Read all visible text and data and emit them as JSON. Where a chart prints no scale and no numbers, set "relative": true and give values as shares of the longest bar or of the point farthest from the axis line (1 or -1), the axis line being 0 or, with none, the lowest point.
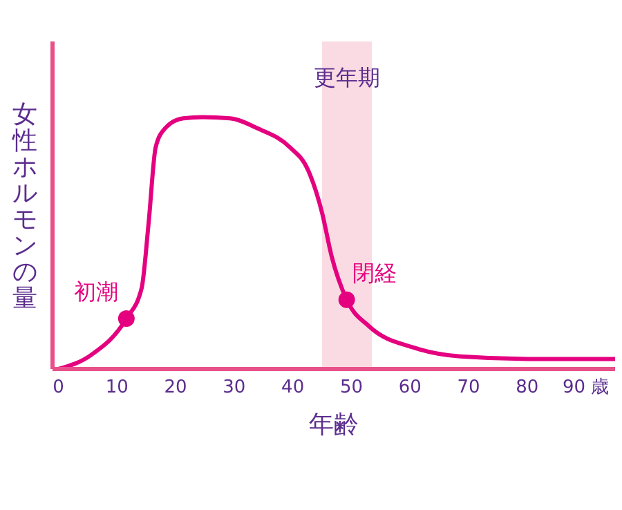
{
  "chart_data": {
    "type": "line",
    "xlabel": "年齢",
    "ylabel": "女性ホルモンの量",
    "relative": true,
    "color": "#e4007f",
    "x": [
      0,
      5.6,
      11.6,
      14.2,
      15.4,
      16.6,
      18.2,
      21.3,
      24.6,
      29.3,
      34,
      39.5,
      42.6,
      45,
      46.6,
      49.2,
      53,
      60.8,
      68.6,
      80.4,
      95
    ],
    "values": [
      0,
      0.056,
      0.2,
      0.32,
      0.58,
      0.88,
      0.955,
      0.995,
      1,
      0.995,
      0.955,
      0.88,
      0.79,
      0.62,
      0.45,
      0.275,
      0.17,
      0.084,
      0.05,
      0.04,
      0.04
    ],
    "xlim": [
      -1,
      95
    ],
    "xticks": [
      0,
      10,
      20,
      30,
      40,
      50,
      60,
      70,
      80,
      {
        "value": 90,
        "label": "90 歳"
      }
    ],
    "bands": [
      {
        "axis": "x",
        "from": 45,
        "to": 53.5,
        "label": "更年期",
        "color": "#fadbe3"
      }
    ],
    "annotations": [
      {
        "text": "初潮",
        "x": 11.6,
        "y": 0.2
      },
      {
        "text": "閉経",
        "x": 49.2,
        "y": 0.275
      }
    ]
  }
}
